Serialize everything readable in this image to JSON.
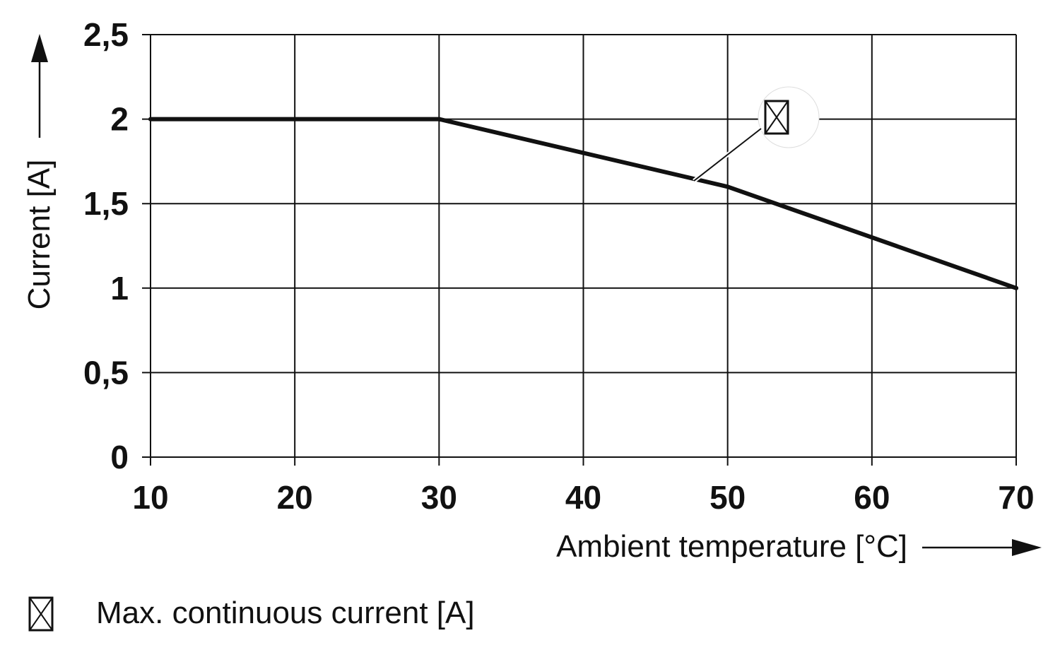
{
  "chart_data": {
    "type": "line",
    "x": [
      10,
      30,
      50,
      70
    ],
    "series": [
      {
        "name": "Max. continuous current [A]",
        "values": [
          2,
          2,
          1.6,
          1
        ]
      }
    ],
    "xlabel": "Ambient temperature [°C]",
    "ylabel": "Current [A]",
    "xlim": [
      10,
      70
    ],
    "ylim": [
      0,
      2.5
    ],
    "x_ticks": [
      10,
      20,
      30,
      40,
      50,
      60,
      70
    ],
    "x_tick_labels": [
      "10",
      "20",
      "30",
      "40",
      "50",
      "60",
      "70"
    ],
    "y_ticks": [
      0,
      0.5,
      1,
      1.5,
      2,
      2.5
    ],
    "y_tick_labels": [
      "0",
      "0,5",
      "1",
      "1,5",
      "2",
      "2,5"
    ],
    "grid": true,
    "legend_position": "bottom-left",
    "legend_marker": "x-box-icon",
    "line_color": "#111111"
  }
}
